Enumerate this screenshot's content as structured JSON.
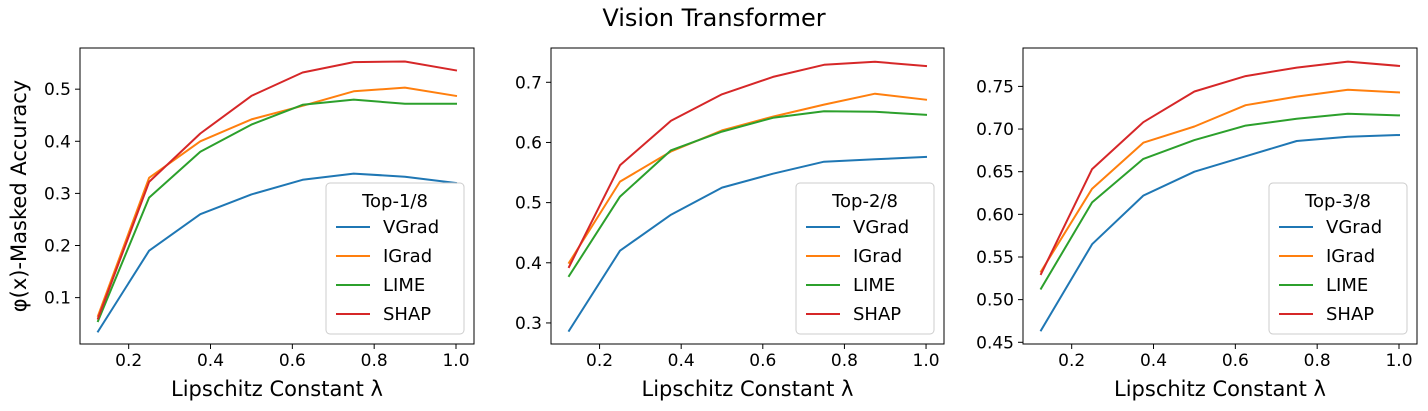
{
  "suptitle": "Vision Transformer",
  "ylabel": "φ(x)-Masked Accuracy",
  "colors": {
    "VGrad": "#1f77b4",
    "IGrad": "#ff7f0e",
    "LIME": "#2ca02c",
    "SHAP": "#d62728"
  },
  "chart_data": [
    {
      "type": "line",
      "xlabel": "Lipschitz Constant λ",
      "ylabel": "φ(x)-Masked Accuracy",
      "legend_title": "Top-1/8",
      "legend_position": "lower right",
      "grid": false,
      "x": [
        0.125,
        0.25,
        0.375,
        0.5,
        0.625,
        0.75,
        0.875,
        1.0
      ],
      "xlim": [
        0.081,
        1.044
      ],
      "ylim": [
        0.011,
        0.579
      ],
      "xticks": [
        0.2,
        0.4,
        0.6,
        0.8,
        1.0
      ],
      "xtick_labels": [
        "0.2",
        "0.4",
        "0.6",
        "0.8",
        "1.0"
      ],
      "yticks": [
        0.1,
        0.2,
        0.3,
        0.4,
        0.5
      ],
      "ytick_labels": [
        "0.1",
        "0.2",
        "0.3",
        "0.4",
        "0.5"
      ],
      "series": [
        {
          "name": "VGrad",
          "values": [
            0.035,
            0.19,
            0.26,
            0.298,
            0.326,
            0.338,
            0.332,
            0.32
          ]
        },
        {
          "name": "IGrad",
          "values": [
            0.065,
            0.33,
            0.4,
            0.442,
            0.468,
            0.496,
            0.503,
            0.487
          ]
        },
        {
          "name": "LIME",
          "values": [
            0.055,
            0.292,
            0.38,
            0.432,
            0.47,
            0.48,
            0.472,
            0.472
          ]
        },
        {
          "name": "SHAP",
          "values": [
            0.06,
            0.322,
            0.415,
            0.487,
            0.532,
            0.552,
            0.553,
            0.536
          ]
        }
      ]
    },
    {
      "type": "line",
      "xlabel": "Lipschitz Constant λ",
      "ylabel": "",
      "legend_title": "Top-2/8",
      "legend_position": "lower right",
      "grid": false,
      "x": [
        0.125,
        0.25,
        0.375,
        0.5,
        0.625,
        0.75,
        0.875,
        1.0
      ],
      "xlim": [
        0.081,
        1.044
      ],
      "ylim": [
        0.265,
        0.757
      ],
      "xticks": [
        0.2,
        0.4,
        0.6,
        0.8,
        1.0
      ],
      "xtick_labels": [
        "0.2",
        "0.4",
        "0.6",
        "0.8",
        "1.0"
      ],
      "yticks": [
        0.3,
        0.4,
        0.5,
        0.6,
        0.7
      ],
      "ytick_labels": [
        "0.3",
        "0.4",
        "0.5",
        "0.6",
        "0.7"
      ],
      "series": [
        {
          "name": "VGrad",
          "values": [
            0.287,
            0.42,
            0.48,
            0.525,
            0.548,
            0.568,
            0.572,
            0.576
          ]
        },
        {
          "name": "IGrad",
          "values": [
            0.4,
            0.535,
            0.585,
            0.62,
            0.643,
            0.663,
            0.681,
            0.671
          ]
        },
        {
          "name": "LIME",
          "values": [
            0.378,
            0.51,
            0.587,
            0.618,
            0.641,
            0.652,
            0.651,
            0.646
          ]
        },
        {
          "name": "SHAP",
          "values": [
            0.393,
            0.562,
            0.636,
            0.68,
            0.709,
            0.729,
            0.734,
            0.727
          ]
        }
      ]
    },
    {
      "type": "line",
      "xlabel": "Lipschitz Constant λ",
      "ylabel": "",
      "legend_title": "Top-3/8",
      "legend_position": "lower right",
      "grid": false,
      "x": [
        0.125,
        0.25,
        0.375,
        0.5,
        0.625,
        0.75,
        0.875,
        1.0
      ],
      "xlim": [
        0.081,
        1.044
      ],
      "ylim": [
        0.448,
        0.795
      ],
      "xticks": [
        0.2,
        0.4,
        0.6,
        0.8,
        1.0
      ],
      "xtick_labels": [
        "0.2",
        "0.4",
        "0.6",
        "0.8",
        "1.0"
      ],
      "yticks": [
        0.45,
        0.5,
        0.55,
        0.6,
        0.65,
        0.7,
        0.75
      ],
      "ytick_labels": [
        "0.45",
        "0.50",
        "0.55",
        "0.60",
        "0.65",
        "0.70",
        "0.75"
      ],
      "series": [
        {
          "name": "VGrad",
          "values": [
            0.464,
            0.565,
            0.622,
            0.65,
            0.668,
            0.686,
            0.691,
            0.693
          ]
        },
        {
          "name": "IGrad",
          "values": [
            0.533,
            0.63,
            0.684,
            0.703,
            0.728,
            0.738,
            0.746,
            0.743
          ]
        },
        {
          "name": "LIME",
          "values": [
            0.513,
            0.614,
            0.665,
            0.687,
            0.704,
            0.712,
            0.718,
            0.716
          ]
        },
        {
          "name": "SHAP",
          "values": [
            0.53,
            0.653,
            0.708,
            0.744,
            0.762,
            0.772,
            0.779,
            0.774
          ]
        }
      ]
    }
  ]
}
